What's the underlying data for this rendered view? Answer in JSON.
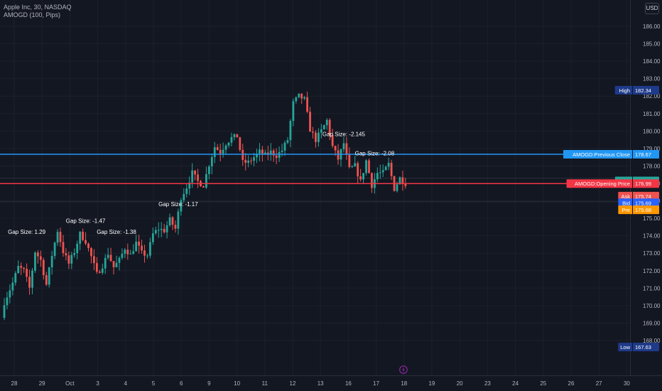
{
  "header": {
    "symbol_line": "Apple Inc, 30, NASDAQ",
    "indicator_line": "AMOGD (100, Pips)",
    "currency": "USD"
  },
  "colors": {
    "background": "#131722",
    "up": "#26a69a",
    "down": "#ef5350",
    "text": "#b2b5be",
    "previous_close": "#2196f3",
    "opening_price": "#f23645",
    "bid": "#2962ff",
    "pre": "#ff9800",
    "high_low": "#1e3a8a"
  },
  "chart_data": {
    "type": "candlestick",
    "y_ticks": [
      "168.00",
      "169.00",
      "170.00",
      "171.00",
      "172.00",
      "173.00",
      "174.00",
      "175.00",
      "176.00",
      "177.00",
      "178.00",
      "179.00",
      "180.00",
      "181.00",
      "182.00",
      "183.00",
      "184.00",
      "185.00",
      "186.00"
    ],
    "ylim": [
      167.3,
      186.3
    ],
    "x_ticks": [
      "28",
      "29",
      "Oct",
      "3",
      "4",
      "5",
      "6",
      "9",
      "10",
      "11",
      "12",
      "13",
      "16",
      "17",
      "18",
      "19",
      "20",
      "23",
      "24",
      "25",
      "26",
      "27",
      "30"
    ],
    "candles_close_path": [
      [
        0,
        170.2
      ],
      [
        3,
        171.3
      ],
      [
        5,
        172.2
      ],
      [
        7,
        172.0
      ],
      [
        9,
        171.0
      ],
      [
        11,
        173.1
      ],
      [
        13,
        172.6
      ],
      [
        15,
        171.2
      ],
      [
        17,
        172.9
      ],
      [
        19,
        174.3
      ],
      [
        21,
        173.1
      ],
      [
        23,
        172.4
      ],
      [
        25,
        173.1
      ],
      [
        27,
        174.1
      ],
      [
        29,
        173.7
      ],
      [
        31,
        172.8
      ],
      [
        33,
        171.8
      ],
      [
        35,
        172.3
      ],
      [
        37,
        173.0
      ],
      [
        39,
        172.2
      ],
      [
        41,
        172.6
      ],
      [
        43,
        173.3
      ],
      [
        45,
        172.9
      ],
      [
        47,
        173.6
      ],
      [
        49,
        173.0
      ],
      [
        51,
        172.9
      ],
      [
        53,
        174.1
      ],
      [
        55,
        174.4
      ],
      [
        57,
        174.3
      ],
      [
        59,
        174.9
      ],
      [
        61,
        174.4
      ],
      [
        63,
        176.2
      ],
      [
        65,
        176.8
      ],
      [
        67,
        177.6
      ],
      [
        69,
        177.1
      ],
      [
        71,
        176.9
      ],
      [
        73,
        178.1
      ],
      [
        75,
        179.1
      ],
      [
        77,
        178.8
      ],
      [
        79,
        179.3
      ],
      [
        81,
        179.6
      ],
      [
        83,
        179.7
      ],
      [
        85,
        178.2
      ],
      [
        87,
        178.2
      ],
      [
        89,
        178.5
      ],
      [
        91,
        178.8
      ],
      [
        93,
        178.6
      ],
      [
        95,
        178.8
      ],
      [
        97,
        178.6
      ],
      [
        99,
        178.9
      ],
      [
        101,
        179.5
      ],
      [
        103,
        181.6
      ],
      [
        105,
        182.0
      ],
      [
        107,
        181.8
      ],
      [
        109,
        180.1
      ],
      [
        111,
        179.5
      ],
      [
        113,
        180.0
      ],
      [
        115,
        180.6
      ],
      [
        117,
        179.1
      ],
      [
        119,
        178.4
      ],
      [
        121,
        179.3
      ],
      [
        123,
        177.8
      ],
      [
        125,
        178.0
      ],
      [
        127,
        177.1
      ],
      [
        129,
        178.3
      ],
      [
        131,
        176.9
      ],
      [
        133,
        177.6
      ],
      [
        135,
        177.6
      ],
      [
        137,
        178.1
      ],
      [
        139,
        176.7
      ],
      [
        141,
        177.3
      ],
      [
        143,
        177.0
      ]
    ],
    "annotations": [
      {
        "label": "Gap Size: 1.29",
        "x": 8,
        "price": 174.1
      },
      {
        "label": "Gap Size: -1.47",
        "x": 29,
        "price": 174.75
      },
      {
        "label": "Gap Size: -1.38",
        "x": 40,
        "price": 174.1
      },
      {
        "label": "Gap Size: -1.17",
        "x": 62,
        "price": 175.7
      },
      {
        "label": "Gap Size: -2.145",
        "x": 121,
        "price": 179.7
      },
      {
        "label": "Gap Size: -2.08",
        "x": 132,
        "price": 178.6
      }
    ],
    "lines": [
      {
        "name": "AMOGD:Previous Close",
        "price": 178.67,
        "color": "#2196f3"
      },
      {
        "name": "AMOGD:Opening Price",
        "price": 176.99,
        "color": "#f23645"
      }
    ],
    "price_labels": [
      {
        "label": "High",
        "value": "182.34",
        "price": 182.34
      },
      {
        "label": "AMOGD:Previous Close",
        "value": "178.67",
        "price": 178.67
      },
      {
        "label": "AAPL",
        "value": "177.14",
        "price": 177.14
      },
      {
        "label": "AMOGD:Opening Price",
        "value": "176.99",
        "price": 176.99
      },
      {
        "label": "Ask",
        "value": "175.74",
        "price": 176.27
      },
      {
        "label": "Bid",
        "value": "175.69",
        "price": 175.89
      },
      {
        "label": "Pre",
        "value": "175.68",
        "price": 175.49
      },
      {
        "label": "Low",
        "value": "167.63",
        "price": 167.63
      }
    ],
    "grid": true
  }
}
